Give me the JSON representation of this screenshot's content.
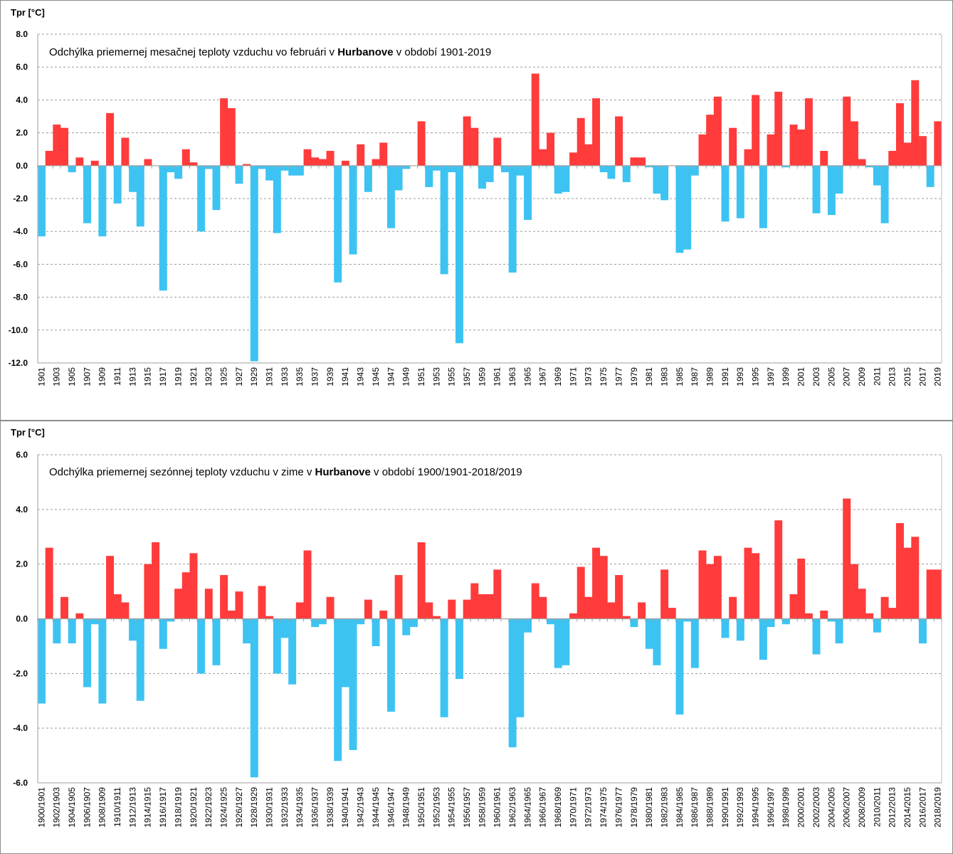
{
  "colors": {
    "positive": "#ff3b3b",
    "negative": "#3dc3f2",
    "grid": "#9a9a9a"
  },
  "chart_data": [
    {
      "type": "bar",
      "title_pre": "Odchýlka priemernej mesačnej teploty vzduchu vo februári v ",
      "title_bold": "Hurbanove",
      "title_post": " v období 1901-2019",
      "ylabel": "Tpr [°C]",
      "xlabel": "",
      "ylim": [
        -12,
        8
      ],
      "ytick_values": [
        8,
        6,
        4,
        2,
        0,
        -2,
        -4,
        -6,
        -8,
        -10,
        -12
      ],
      "ytick_labels": [
        "8.0",
        "6.0",
        "4.0",
        "2.0",
        "0.0",
        "-2.0",
        "-4.0",
        "-6.0",
        "-8.0",
        "-10.0",
        "-12.0"
      ],
      "grid": true,
      "first_year": 1901,
      "categories_labeled_every": 2,
      "values": [
        -4.3,
        0.9,
        2.5,
        2.3,
        -0.4,
        0.5,
        -3.5,
        0.3,
        -4.3,
        3.2,
        -2.3,
        1.7,
        -1.6,
        -3.7,
        0.4,
        0.0,
        -7.6,
        -0.4,
        -0.8,
        1.0,
        0.2,
        -4.0,
        -0.2,
        -2.7,
        4.1,
        3.5,
        -1.1,
        0.1,
        -11.9,
        -0.2,
        -0.9,
        -4.1,
        -0.3,
        -0.6,
        -0.6,
        1.0,
        0.5,
        0.4,
        0.9,
        -7.1,
        0.3,
        -5.4,
        1.3,
        -1.6,
        0.4,
        1.4,
        -3.8,
        -1.5,
        -0.2,
        0.0,
        2.7,
        -1.3,
        -0.3,
        -6.6,
        -0.4,
        -10.8,
        3.0,
        2.3,
        -1.4,
        -1.0,
        1.7,
        -0.4,
        -6.5,
        -0.6,
        -3.3,
        5.6,
        1.0,
        2.0,
        -1.7,
        -1.6,
        0.8,
        2.9,
        1.3,
        4.1,
        -0.4,
        -0.8,
        3.0,
        -1.0,
        0.5,
        0.5,
        -0.1,
        -1.7,
        -2.1,
        0.0,
        -5.3,
        -5.1,
        -0.6,
        1.9,
        3.1,
        4.2,
        -3.4,
        2.3,
        -3.2,
        1.0,
        4.3,
        -3.8,
        1.9,
        4.5,
        -0.1,
        2.5,
        2.2,
        4.1,
        -2.9,
        0.9,
        -3.0,
        -1.7,
        4.2,
        2.7,
        0.4,
        -0.1,
        -1.2,
        -3.5,
        0.9,
        3.8,
        1.4,
        5.2,
        1.8,
        -1.3,
        2.7
      ]
    },
    {
      "type": "bar",
      "title_pre": "Odchýlka priemernej sezónnej teploty vzduchu v zime v ",
      "title_bold": "Hurbanove",
      "title_post": " v období 1900/1901-2018/2019",
      "ylabel": "Tpr [°C]",
      "xlabel": "",
      "ylim": [
        -6,
        6
      ],
      "ytick_values": [
        6,
        4,
        2,
        0,
        -2,
        -4,
        -6
      ],
      "ytick_labels": [
        "6.0",
        "4.0",
        "2.0",
        "0.0",
        "-2.0",
        "-4.0",
        "-6.0"
      ],
      "grid": true,
      "first_year": 1900,
      "season_labels": true,
      "categories_labeled_every": 2,
      "values": [
        -3.1,
        2.6,
        -0.9,
        0.8,
        -0.9,
        0.2,
        -2.5,
        -0.2,
        -3.1,
        2.3,
        0.9,
        0.6,
        -0.8,
        -3.0,
        2.0,
        2.8,
        -1.1,
        -0.1,
        1.1,
        1.7,
        2.4,
        -2.0,
        1.1,
        -1.7,
        1.6,
        0.3,
        1.0,
        -0.9,
        -5.8,
        1.2,
        0.1,
        -2.0,
        -0.7,
        -2.4,
        0.6,
        2.5,
        -0.3,
        -0.2,
        0.8,
        -5.2,
        -2.5,
        -4.8,
        -0.2,
        0.7,
        -1.0,
        0.3,
        -3.4,
        1.6,
        -0.6,
        -0.3,
        2.8,
        0.6,
        0.1,
        -3.6,
        0.7,
        -2.2,
        0.7,
        1.3,
        0.9,
        0.9,
        1.8,
        0.0,
        -4.7,
        -3.6,
        -0.5,
        1.3,
        0.8,
        -0.2,
        -1.8,
        -1.7,
        0.2,
        1.9,
        0.8,
        2.6,
        2.3,
        0.6,
        1.6,
        0.1,
        -0.3,
        0.6,
        -1.1,
        -1.7,
        1.8,
        0.4,
        -3.5,
        -0.1,
        -1.8,
        2.5,
        2.0,
        2.3,
        -0.7,
        0.8,
        -0.8,
        2.6,
        2.4,
        -1.5,
        -0.3,
        3.6,
        -0.2,
        0.9,
        2.2,
        0.2,
        -1.3,
        0.3,
        -0.1,
        -0.9,
        4.4,
        2.0,
        1.1,
        0.2,
        -0.5,
        0.8,
        0.4,
        3.5,
        2.6,
        3.0,
        -0.9,
        1.8,
        1.8
      ]
    }
  ]
}
